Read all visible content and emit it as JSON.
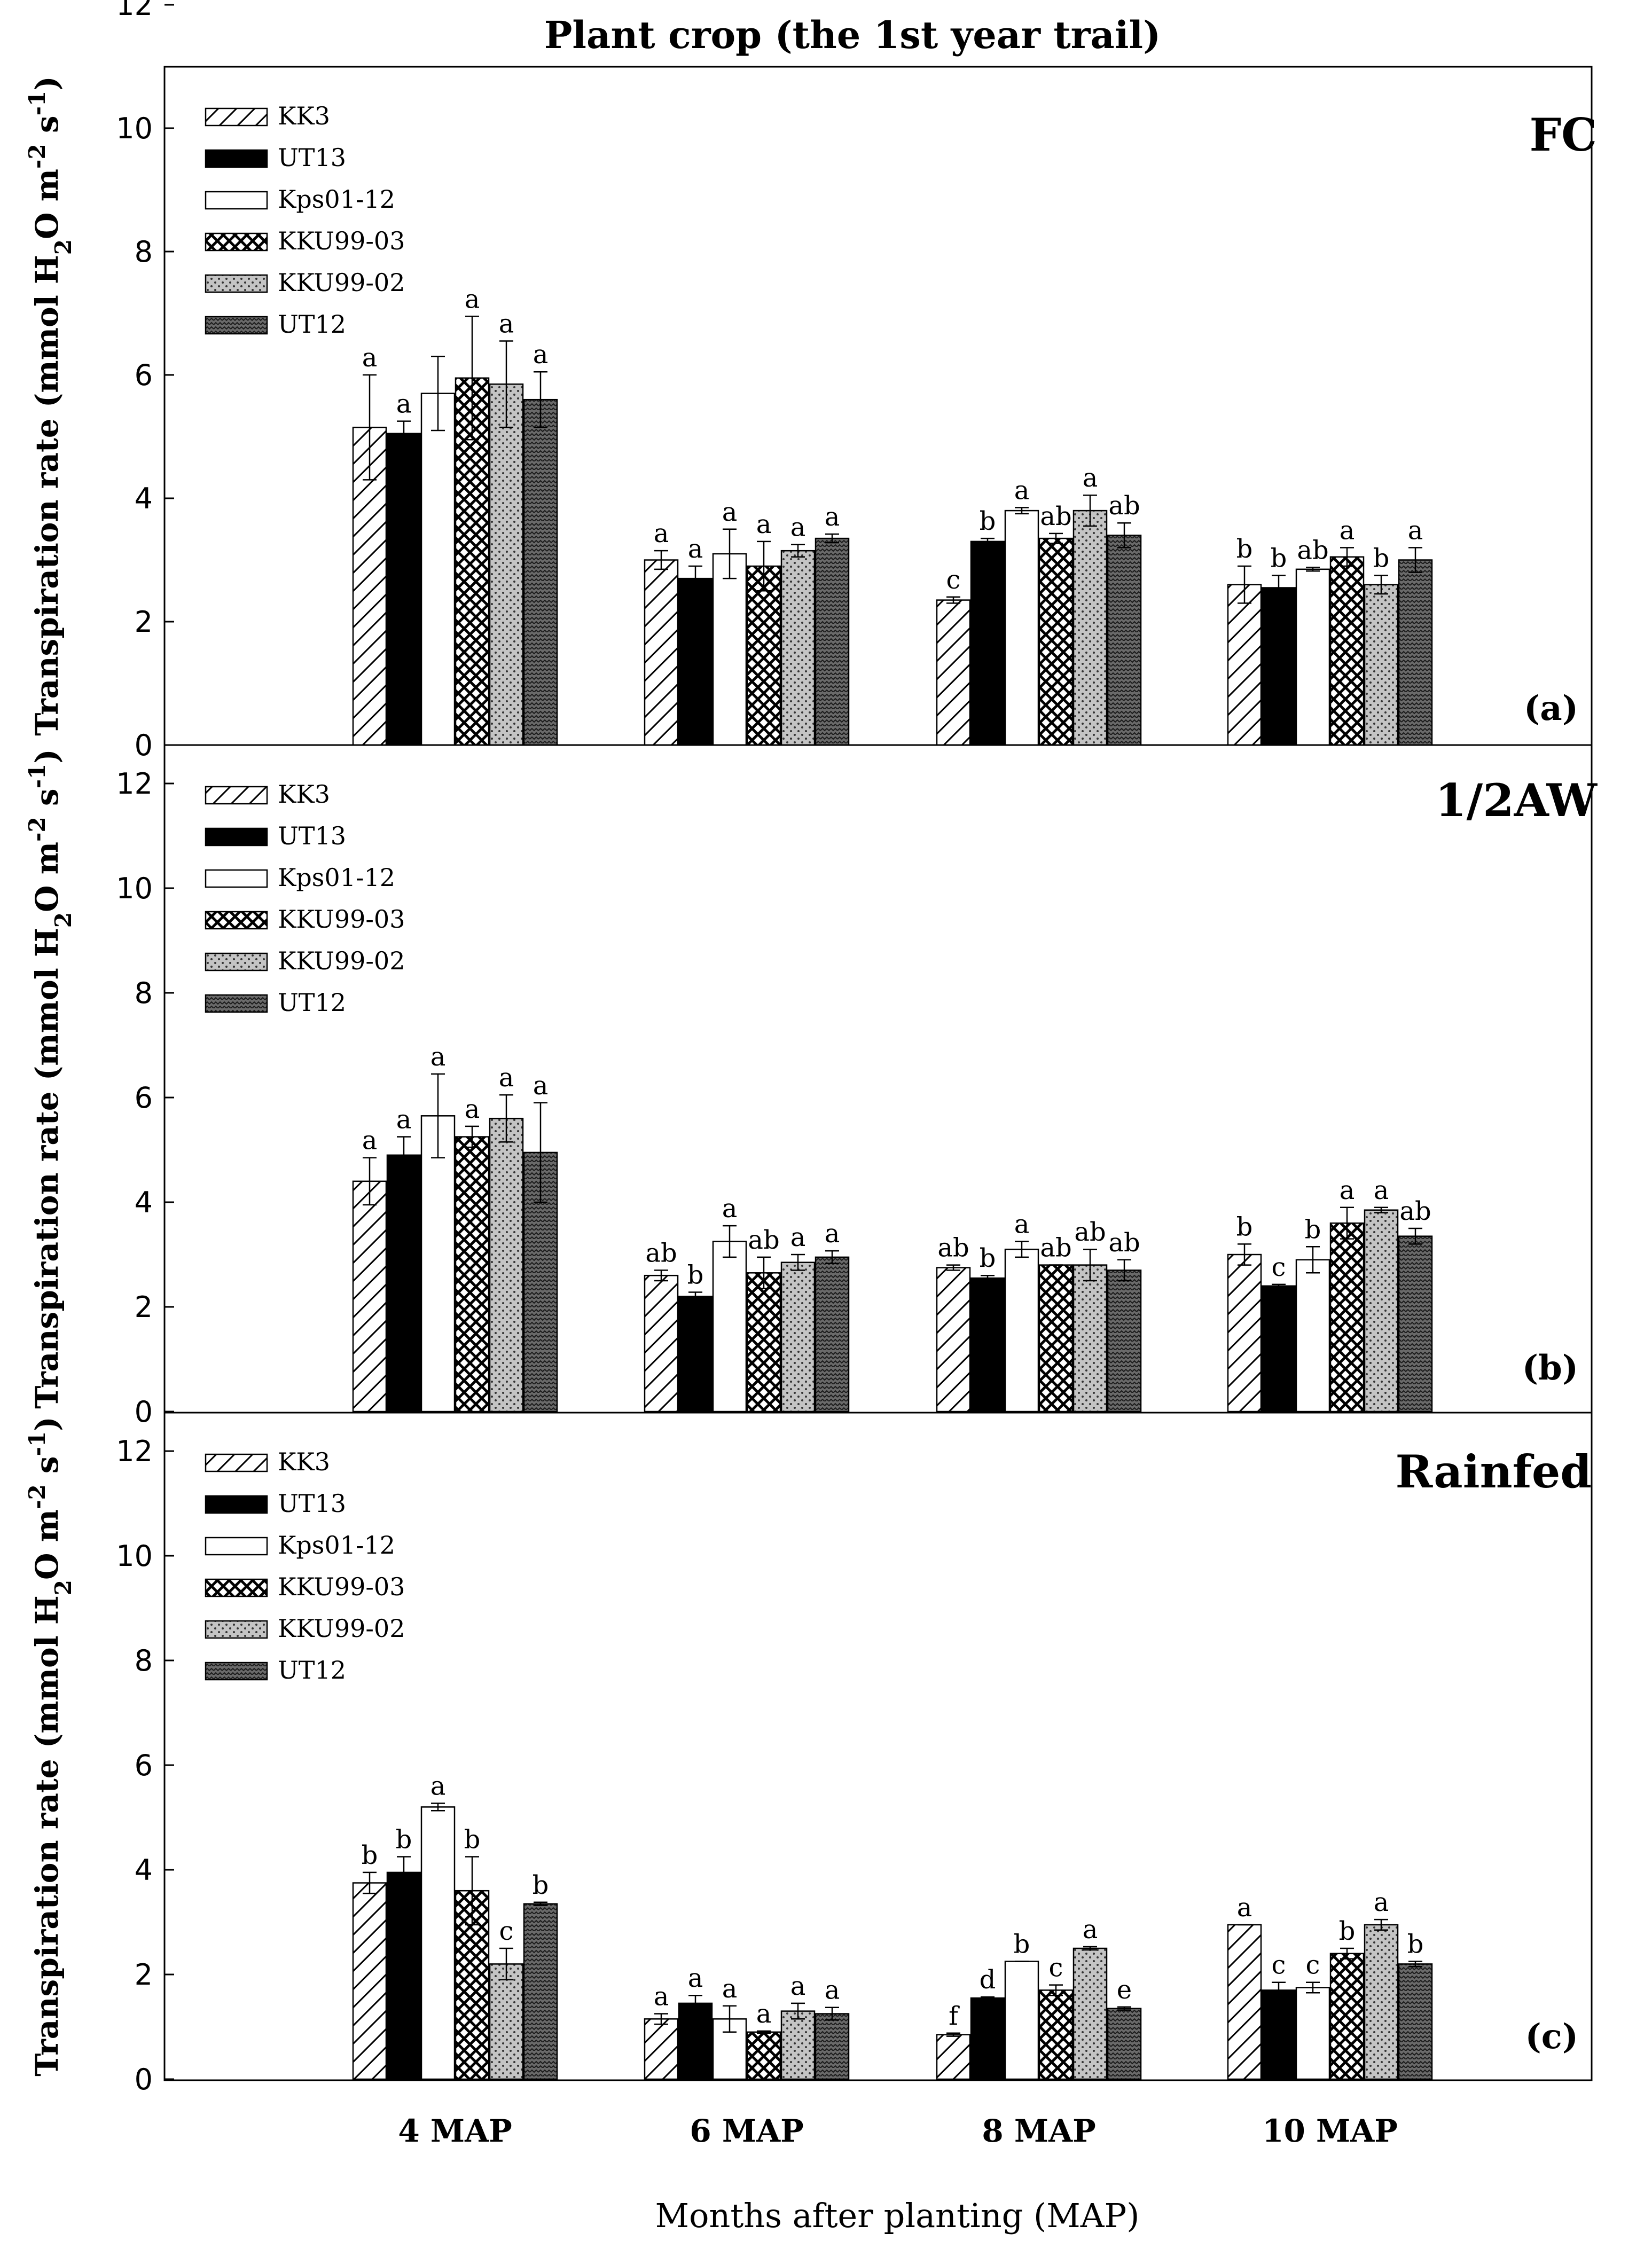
{
  "figure": {
    "title": "Plant crop (the 1st year trail)",
    "xlabel": "Months after planting (MAP)"
  },
  "chart_data": [
    {
      "type": "bar",
      "panel_label": "(a)",
      "treatment": "FC",
      "ylabel": "Transpiration rate (mmol H2O m-2 s-1)",
      "ylim": [
        0,
        12.5
      ],
      "yticks": [
        "0",
        "2",
        "4",
        "6",
        "8",
        "10",
        "12"
      ],
      "categories": [
        "4 MAP",
        "6 MAP",
        "8 MAP",
        "10 MAP"
      ],
      "legend_position": "top-left",
      "series": [
        {
          "name": "KK3",
          "values": [
            5.15,
            3.0,
            2.35,
            2.6
          ],
          "errors": [
            0.85,
            0.15,
            0.05,
            0.3
          ],
          "letters": [
            "a",
            "a",
            "c",
            "b"
          ]
        },
        {
          "name": "UT13",
          "values": [
            5.05,
            2.7,
            3.3,
            2.55
          ],
          "errors": [
            0.2,
            0.2,
            0.05,
            0.2
          ],
          "letters": [
            "a",
            "a",
            "b",
            "b"
          ]
        },
        {
          "name": "Kps01-12",
          "values": [
            5.7,
            3.1,
            3.8,
            2.85
          ],
          "errors": [
            0.6,
            0.4,
            0.05,
            0.03
          ],
          "letters": [
            "",
            "a",
            "a",
            "ab"
          ]
        },
        {
          "name": "KKU99-03",
          "values": [
            5.95,
            2.9,
            3.35,
            3.05
          ],
          "errors": [
            1.0,
            0.4,
            0.08,
            0.15
          ],
          "letters": [
            "a",
            "a",
            "ab",
            "a"
          ]
        },
        {
          "name": "KKU99-02",
          "values": [
            5.85,
            3.15,
            3.8,
            2.6
          ],
          "errors": [
            0.7,
            0.1,
            0.25,
            0.15
          ],
          "letters": [
            "a",
            "a",
            "a",
            "b"
          ]
        },
        {
          "name": "UT12",
          "values": [
            5.6,
            3.35,
            3.4,
            3.0
          ],
          "errors": [
            0.45,
            0.07,
            0.2,
            0.2
          ],
          "letters": [
            "a",
            "a",
            "ab",
            "a"
          ]
        }
      ]
    },
    {
      "type": "bar",
      "panel_label": "(b)",
      "treatment": "1/2AW",
      "ylabel": "Transpiration rate (mmol H2O m-2 s-1)",
      "ylim": [
        0,
        12.5
      ],
      "yticks": [
        "0",
        "2",
        "4",
        "6",
        "8",
        "10",
        "12"
      ],
      "categories": [
        "4 MAP",
        "6 MAP",
        "8 MAP",
        "10 MAP"
      ],
      "legend_position": "top-left",
      "series": [
        {
          "name": "KK3",
          "values": [
            4.4,
            2.6,
            2.75,
            3.0
          ],
          "errors": [
            0.45,
            0.1,
            0.05,
            0.2
          ],
          "letters": [
            "a",
            "ab",
            "ab",
            "b"
          ]
        },
        {
          "name": "UT13",
          "values": [
            4.9,
            2.2,
            2.55,
            2.4
          ],
          "errors": [
            0.35,
            0.08,
            0.05,
            0.03
          ],
          "letters": [
            "a",
            "b",
            "b",
            "c"
          ]
        },
        {
          "name": "Kps01-12",
          "values": [
            5.65,
            3.25,
            3.1,
            2.9
          ],
          "errors": [
            0.8,
            0.3,
            0.15,
            0.25
          ],
          "letters": [
            "a",
            "a",
            "a",
            "b"
          ]
        },
        {
          "name": "KKU99-03",
          "values": [
            5.25,
            2.65,
            2.8,
            3.6
          ],
          "errors": [
            0.2,
            0.3,
            0.0,
            0.3
          ],
          "letters": [
            "a",
            "ab",
            "ab",
            "a"
          ]
        },
        {
          "name": "KKU99-02",
          "values": [
            5.6,
            2.85,
            2.8,
            3.85
          ],
          "errors": [
            0.45,
            0.15,
            0.3,
            0.05
          ],
          "letters": [
            "a",
            "a",
            "ab",
            "a"
          ]
        },
        {
          "name": "UT12",
          "values": [
            4.95,
            2.95,
            2.7,
            3.35
          ],
          "errors": [
            0.95,
            0.12,
            0.2,
            0.15
          ],
          "letters": [
            "a",
            "a",
            "ab",
            "ab"
          ]
        }
      ]
    },
    {
      "type": "bar",
      "panel_label": "(c)",
      "treatment": "Rainfed",
      "ylabel": "Transpiration rate (mmol H2O m-2 s-1)",
      "ylim": [
        0,
        12.5
      ],
      "yticks": [
        "0",
        "2",
        "4",
        "6",
        "8",
        "10",
        "12"
      ],
      "categories": [
        "4 MAP",
        "6 MAP",
        "8 MAP",
        "10 MAP"
      ],
      "legend_position": "top-left",
      "series": [
        {
          "name": "KK3",
          "values": [
            3.75,
            1.15,
            0.85,
            2.95
          ],
          "errors": [
            0.2,
            0.1,
            0.03,
            0.0
          ],
          "letters": [
            "b",
            "a",
            "f",
            "a"
          ]
        },
        {
          "name": "UT13",
          "values": [
            3.95,
            1.45,
            1.55,
            1.7
          ],
          "errors": [
            0.3,
            0.15,
            0.02,
            0.15
          ],
          "letters": [
            "b",
            "a",
            "d",
            "c"
          ]
        },
        {
          "name": "Kps01-12",
          "values": [
            5.2,
            1.15,
            2.25,
            1.75
          ],
          "errors": [
            0.07,
            0.25,
            0.0,
            0.1
          ],
          "letters": [
            "a",
            "a",
            "b",
            "c"
          ]
        },
        {
          "name": "KKU99-03",
          "values": [
            3.6,
            0.9,
            1.7,
            2.4
          ],
          "errors": [
            0.65,
            0.02,
            0.1,
            0.1
          ],
          "letters": [
            "b",
            "a",
            "c",
            "b"
          ]
        },
        {
          "name": "KKU99-02",
          "values": [
            2.2,
            1.3,
            2.5,
            2.95
          ],
          "errors": [
            0.3,
            0.15,
            0.03,
            0.1
          ],
          "letters": [
            "c",
            "a",
            "a",
            "a"
          ]
        },
        {
          "name": "UT12",
          "values": [
            3.35,
            1.25,
            1.35,
            2.2
          ],
          "errors": [
            0.03,
            0.12,
            0.03,
            0.05
          ],
          "letters": [
            "b",
            "a",
            "e",
            "b"
          ]
        }
      ]
    }
  ]
}
